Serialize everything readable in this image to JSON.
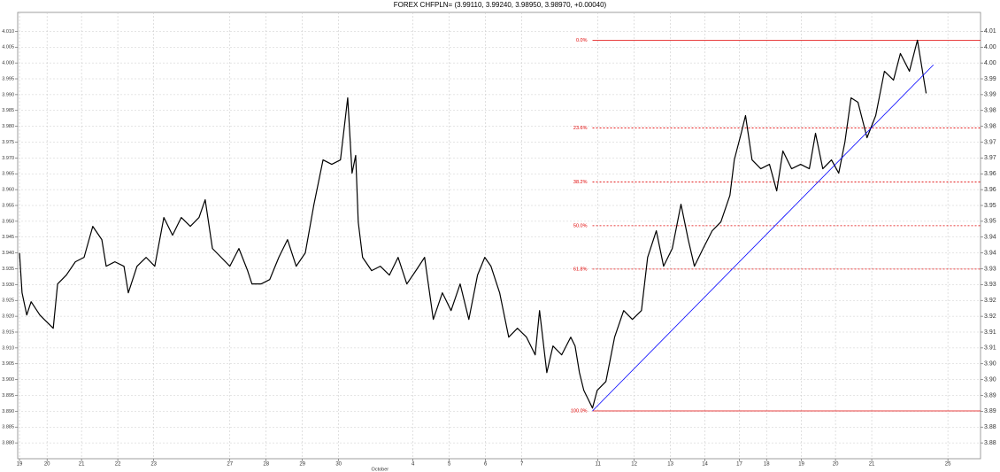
{
  "chart_data": {
    "type": "line",
    "title": "FOREX CHFPLN= (3.99110, 3.99240, 3.98950, 3.98970, +0.00040)",
    "xlim": [
      -0.05,
      26.5
    ],
    "ylim": [
      3.875,
      4.0185
    ],
    "y2lim": [
      3.875,
      4.0185
    ],
    "grid": true,
    "xticks": [
      {
        "value": 0,
        "label": "19"
      },
      {
        "value": 0.76,
        "label": "20"
      },
      {
        "value": 1.71,
        "label": "21"
      },
      {
        "value": 2.71,
        "label": "22"
      },
      {
        "value": 3.7,
        "label": "23"
      },
      {
        "value": 5.8,
        "label": "27"
      },
      {
        "value": 6.8,
        "label": "28"
      },
      {
        "value": 7.8,
        "label": "29"
      },
      {
        "value": 8.8,
        "label": "30"
      },
      {
        "value": 10.85,
        "label": "4"
      },
      {
        "value": 11.85,
        "label": "5"
      },
      {
        "value": 12.85,
        "label": "6"
      },
      {
        "value": 13.85,
        "label": "7"
      },
      {
        "value": 15.95,
        "label": "11"
      },
      {
        "value": 16.95,
        "label": "12"
      },
      {
        "value": 17.95,
        "label": "13"
      },
      {
        "value": 18.9,
        "label": "14"
      },
      {
        "value": 19.85,
        "label": "17"
      },
      {
        "value": 20.6,
        "label": "18"
      },
      {
        "value": 21.56,
        "label": "19"
      },
      {
        "value": 22.5,
        "label": "20"
      },
      {
        "value": 23.5,
        "label": "21"
      },
      {
        "value": 25.6,
        "label": "25"
      }
    ],
    "yticks": [
      {
        "value": 4.01,
        "label": "4.010"
      },
      {
        "value": 4.005,
        "label": "4.005"
      },
      {
        "value": 4.0,
        "label": "4.000"
      },
      {
        "value": 3.995,
        "label": "3.995"
      },
      {
        "value": 3.99,
        "label": "3.990"
      },
      {
        "value": 3.985,
        "label": "3.985"
      },
      {
        "value": 3.98,
        "label": "3.980"
      },
      {
        "value": 3.975,
        "label": "3.975"
      },
      {
        "value": 3.97,
        "label": "3.970"
      },
      {
        "value": 3.965,
        "label": "3.965"
      },
      {
        "value": 3.96,
        "label": "3.960"
      },
      {
        "value": 3.955,
        "label": "3.955"
      },
      {
        "value": 3.95,
        "label": "3.950"
      },
      {
        "value": 3.945,
        "label": "3.945"
      },
      {
        "value": 3.94,
        "label": "3.940"
      },
      {
        "value": 3.935,
        "label": "3.935"
      },
      {
        "value": 3.93,
        "label": "3.930"
      },
      {
        "value": 3.925,
        "label": "3.925"
      },
      {
        "value": 3.92,
        "label": "3.920"
      },
      {
        "value": 3.915,
        "label": "3.915"
      },
      {
        "value": 3.91,
        "label": "3.910"
      },
      {
        "value": 3.905,
        "label": "3.905"
      },
      {
        "value": 3.9,
        "label": "3.900"
      },
      {
        "value": 3.895,
        "label": "3.895"
      },
      {
        "value": 3.89,
        "label": "3.890"
      },
      {
        "value": 3.885,
        "label": "3.885"
      },
      {
        "value": 3.88,
        "label": "3.880"
      }
    ],
    "y2ticks": [
      {
        "value": 4.01,
        "label": "4.01"
      },
      {
        "value": 4.005,
        "label": "4.00"
      },
      {
        "value": 4.0,
        "label": "4.00"
      },
      {
        "value": 3.995,
        "label": "3.99"
      },
      {
        "value": 3.99,
        "label": "3.99"
      },
      {
        "value": 3.985,
        "label": "3.98"
      },
      {
        "value": 3.98,
        "label": "3.98"
      },
      {
        "value": 3.975,
        "label": "3.97"
      },
      {
        "value": 3.97,
        "label": "3.97"
      },
      {
        "value": 3.965,
        "label": "3.96"
      },
      {
        "value": 3.96,
        "label": "3.96"
      },
      {
        "value": 3.955,
        "label": "3.95"
      },
      {
        "value": 3.95,
        "label": "3.95"
      },
      {
        "value": 3.945,
        "label": "3.94"
      },
      {
        "value": 3.94,
        "label": "3.94"
      },
      {
        "value": 3.935,
        "label": "3.93"
      },
      {
        "value": 3.93,
        "label": "3.93"
      },
      {
        "value": 3.925,
        "label": "3.92"
      },
      {
        "value": 3.92,
        "label": "3.92"
      },
      {
        "value": 3.915,
        "label": "3.91"
      },
      {
        "value": 3.91,
        "label": "3.91"
      },
      {
        "value": 3.905,
        "label": "3.90"
      },
      {
        "value": 3.9,
        "label": "3.90"
      },
      {
        "value": 3.895,
        "label": "3.89"
      },
      {
        "value": 3.89,
        "label": "3.89"
      },
      {
        "value": 3.885,
        "label": "3.88"
      },
      {
        "value": 3.88,
        "label": "3.88"
      }
    ],
    "series": [
      {
        "color": "#000000",
        "x": [
          0,
          0.07,
          0.2,
          0.32,
          0.56,
          0.68,
          0.93,
          1.05,
          1.29,
          1.54,
          1.78,
          2.02,
          2.27,
          2.39,
          2.63,
          2.88,
          3.0,
          3.24,
          3.49,
          3.73,
          3.98,
          4.22,
          4.46,
          4.71,
          4.95,
          5.12,
          5.32,
          5.56,
          5.8,
          6.05,
          6.29,
          6.41,
          6.66,
          6.9,
          7.15,
          7.39,
          7.63,
          7.88,
          8.12,
          8.37,
          8.61,
          8.85,
          9.05,
          9.17,
          9.27,
          9.34,
          9.46,
          9.71,
          9.95,
          10.2,
          10.44,
          10.68,
          10.93,
          11.17,
          11.41,
          11.66,
          11.9,
          12.15,
          12.39,
          12.63,
          12.83,
          13.0,
          13.24,
          13.49,
          13.73,
          13.98,
          14.22,
          14.34,
          14.54,
          14.71,
          14.95,
          15.2,
          15.32,
          15.44,
          15.56,
          15.68,
          15.8,
          15.93,
          16.17,
          16.41,
          16.66,
          16.9,
          17.15,
          17.32,
          17.56,
          17.76,
          18.0,
          18.24,
          18.44,
          18.61,
          18.85,
          19.1,
          19.34,
          19.59,
          19.71,
          19.9,
          20.02,
          20.2,
          20.44,
          20.68,
          20.88,
          21.05,
          21.29,
          21.54,
          21.78,
          21.95,
          22.15,
          22.39,
          22.59,
          22.76,
          22.93,
          23.12,
          23.37,
          23.61,
          23.85,
          24.1,
          24.29,
          24.54,
          24.76,
          24.88,
          25.0
        ],
        "values": [
          3.94,
          3.9274,
          3.9204,
          3.9246,
          3.9204,
          3.919,
          3.9162,
          3.9302,
          3.933,
          3.9372,
          3.9386,
          3.9484,
          3.9442,
          3.9358,
          3.9372,
          3.9358,
          3.9274,
          3.9358,
          3.9386,
          3.9358,
          3.9512,
          3.9456,
          3.9512,
          3.9484,
          3.9512,
          3.9568,
          3.9414,
          3.9386,
          3.9358,
          3.9414,
          3.9344,
          3.9302,
          3.9302,
          3.9316,
          3.9386,
          3.9442,
          3.9358,
          3.94,
          3.9554,
          3.9694,
          3.968,
          3.9694,
          3.989,
          3.9652,
          3.9708,
          3.9498,
          3.9386,
          3.9344,
          3.9358,
          3.933,
          3.9386,
          3.9302,
          3.9344,
          3.9386,
          3.919,
          3.9274,
          3.9218,
          3.9302,
          3.919,
          3.933,
          3.9386,
          3.9358,
          3.9274,
          3.9134,
          3.9162,
          3.9134,
          3.9078,
          3.9218,
          3.9022,
          3.9106,
          3.9078,
          3.9134,
          3.9106,
          3.9022,
          3.8966,
          3.8938,
          3.891,
          3.8966,
          3.8994,
          3.9134,
          3.9218,
          3.919,
          3.9218,
          3.9386,
          3.947,
          3.9358,
          3.9414,
          3.9554,
          3.9442,
          3.9358,
          3.9414,
          3.947,
          3.9498,
          3.9582,
          3.9694,
          3.9778,
          3.9834,
          3.9694,
          3.9666,
          3.968,
          3.9596,
          3.9722,
          3.9666,
          3.968,
          3.9666,
          3.9778,
          3.9666,
          3.9694,
          3.9652,
          3.975,
          3.989,
          3.9876,
          3.9764,
          3.9834,
          3.9974,
          3.9946,
          4.003,
          3.9974,
          4.0072,
          3.9988,
          3.9904
        ]
      }
    ],
    "trendline": {
      "color": "#0000ff",
      "x": [
        15.8,
        25.2
      ],
      "values": [
        3.8901,
        3.9994
      ]
    },
    "fib_color": "#e00000",
    "fib_levels": [
      {
        "label": "0.0%",
        "value": 4.0072
      },
      {
        "label": "23.6%",
        "value": 3.9795
      },
      {
        "label": "38.2%",
        "value": 3.9624
      },
      {
        "label": "50.0%",
        "value": 3.9486
      },
      {
        "label": "61.8%",
        "value": 3.9349
      },
      {
        "label": "100.0%",
        "value": 3.8901
      }
    ],
    "annotations": [
      {
        "text": "October",
        "x": 9.7
      }
    ]
  }
}
